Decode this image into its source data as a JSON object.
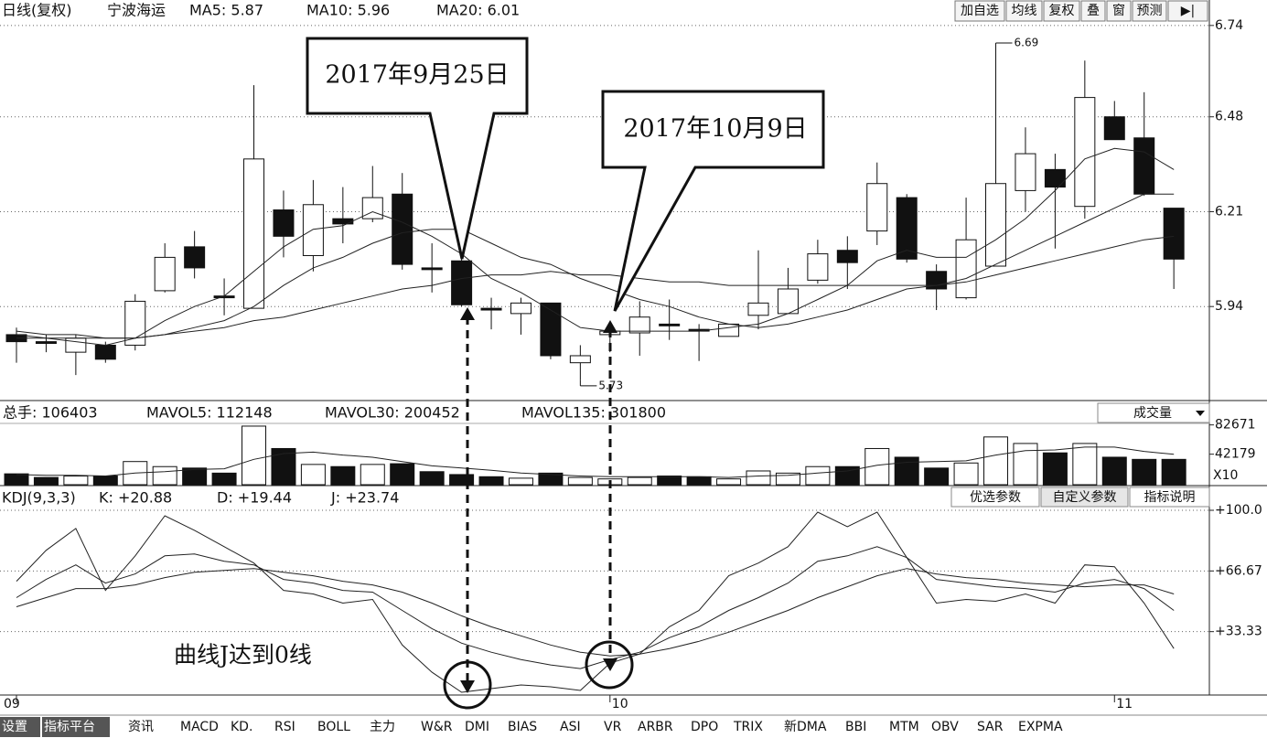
{
  "header": {
    "items": [
      "日线(复权)",
      "宁波海运",
      "MA5: 5.87",
      "MA10: 5.96",
      "MA20: 6.01"
    ],
    "buttons": [
      "加自选",
      "均线",
      "复权",
      "叠",
      "窗",
      "预测",
      "▶|"
    ]
  },
  "chart_data": [
    {
      "type": "candlestick",
      "categories": [
        "09",
        null,
        null,
        null,
        null,
        null,
        null,
        null,
        null,
        null,
        null,
        null,
        null,
        null,
        null,
        null,
        null,
        null,
        null,
        null,
        "10",
        null,
        null,
        null,
        null,
        null,
        null,
        null,
        null,
        null,
        null,
        null,
        null,
        null,
        null,
        null,
        null,
        "11",
        null,
        null
      ],
      "open": [
        5.86,
        5.84,
        5.81,
        5.83,
        5.83,
        5.985,
        6.11,
        5.97,
        5.935,
        6.215,
        6.085,
        6.19,
        6.19,
        6.26,
        6.05,
        6.07,
        5.935,
        5.92,
        5.95,
        5.78,
        5.86,
        5.865,
        5.89,
        5.875,
        5.855,
        5.915,
        5.92,
        6.015,
        6.1,
        6.155,
        6.25,
        6.04,
        5.965,
        6.055,
        6.27,
        6.33,
        6.225,
        6.48,
        6.42,
        6.22
      ],
      "high": [
        5.88,
        5.86,
        5.86,
        5.84,
        5.975,
        6.12,
        6.155,
        6.02,
        6.57,
        6.27,
        6.3,
        6.28,
        6.34,
        6.32,
        6.12,
        6.09,
        5.965,
        5.965,
        5.95,
        5.83,
        5.89,
        5.955,
        5.96,
        5.89,
        5.89,
        6.1,
        6.05,
        6.13,
        6.14,
        6.35,
        6.26,
        6.06,
        6.25,
        6.69,
        6.45,
        6.375,
        6.64,
        6.525,
        6.55,
        6.22
      ],
      "low": [
        5.78,
        5.81,
        5.745,
        5.78,
        5.815,
        5.98,
        6.02,
        5.915,
        5.935,
        6.08,
        6.04,
        6.12,
        6.18,
        6.045,
        5.98,
        5.94,
        5.875,
        5.86,
        5.79,
        5.73,
        5.81,
        5.8,
        5.845,
        5.785,
        5.855,
        5.875,
        5.92,
        6.005,
        5.99,
        6.115,
        6.065,
        5.93,
        5.96,
        6.055,
        6.21,
        6.105,
        6.19,
        6.415,
        6.255,
        5.99
      ],
      "close": [
        5.84,
        5.835,
        5.85,
        5.79,
        5.955,
        6.08,
        6.05,
        5.965,
        6.36,
        6.14,
        6.23,
        6.175,
        6.25,
        6.06,
        6.045,
        5.945,
        5.93,
        5.95,
        5.8,
        5.8,
        5.87,
        5.91,
        5.885,
        5.87,
        5.89,
        5.95,
        5.99,
        6.09,
        6.065,
        6.29,
        6.075,
        5.99,
        6.13,
        6.29,
        6.375,
        6.28,
        6.535,
        6.415,
        6.26,
        6.075
      ],
      "series": [
        {
          "color": "#222",
          "values": [
            5.86,
            5.85,
            5.84,
            5.83,
            5.85,
            5.9,
            5.94,
            5.97,
            6.04,
            6.11,
            6.16,
            6.17,
            6.21,
            6.18,
            6.14,
            6.09,
            6.02,
            5.98,
            5.93,
            5.88,
            5.87,
            5.87,
            5.87,
            5.87,
            5.88,
            5.89,
            5.92,
            5.96,
            6.0,
            6.07,
            6.1,
            6.08,
            6.08,
            6.13,
            6.19,
            6.27,
            6.36,
            6.39,
            6.38,
            6.33
          ]
        },
        {
          "color": "#222",
          "values": [
            5.87,
            5.86,
            5.86,
            5.85,
            5.85,
            5.86,
            5.88,
            5.9,
            5.94,
            6.0,
            6.05,
            6.08,
            6.12,
            6.15,
            6.16,
            6.16,
            6.12,
            6.08,
            6.06,
            6.02,
            5.99,
            5.96,
            5.94,
            5.91,
            5.89,
            5.88,
            5.89,
            5.91,
            5.93,
            5.96,
            5.99,
            6.0,
            6.02,
            6.06,
            6.1,
            6.14,
            6.18,
            6.22,
            6.26,
            6.26
          ]
        },
        {
          "color": "#222",
          "values": [
            5.85,
            5.85,
            5.85,
            5.85,
            5.85,
            5.86,
            5.87,
            5.88,
            5.9,
            5.91,
            5.93,
            5.95,
            5.97,
            5.99,
            6.0,
            6.02,
            6.03,
            6.03,
            6.04,
            6.03,
            6.03,
            6.02,
            6.01,
            6.01,
            6.0,
            6.0,
            6.0,
            6.0,
            6.0,
            6.0,
            6.0,
            6.0,
            6.01,
            6.03,
            6.05,
            6.07,
            6.09,
            6.11,
            6.13,
            6.14
          ]
        }
      ],
      "ylim": [
        5.675,
        6.75
      ],
      "yticks": [
        5.94,
        6.21,
        6.48,
        6.74
      ],
      "grid": true
    },
    {
      "type": "bar",
      "stats": [
        "总手: 106403",
        "MAVOL5: 112148",
        "MAVOL30: 200452",
        "MAVOL135: 301800"
      ],
      "selector": "成交量",
      "unit_label": "X10",
      "values": [
        15000,
        10000,
        12000,
        12000,
        32000,
        25000,
        23000,
        16000,
        81000,
        50000,
        28000,
        25000,
        28000,
        29000,
        18000,
        14000,
        11000,
        9000,
        16000,
        10000,
        8000,
        10000,
        12000,
        11000,
        8000,
        19000,
        16000,
        25000,
        25000,
        50000,
        38000,
        23000,
        30000,
        66000,
        57000,
        44000,
        57000,
        38000,
        35000,
        35000
      ],
      "series": [
        {
          "color": "#222",
          "values": [
            14000,
            13000,
            13000,
            12000,
            16000,
            18000,
            21000,
            22000,
            35000,
            43000,
            45000,
            41000,
            38000,
            32000,
            26000,
            23000,
            20000,
            16000,
            14000,
            12000,
            11000,
            11000,
            11000,
            11000,
            10000,
            12000,
            13000,
            16000,
            19000,
            27000,
            31000,
            32000,
            33000,
            41000,
            47000,
            48000,
            52000,
            52000,
            46000,
            42000
          ]
        }
      ],
      "ylim": [
        0,
        86000
      ],
      "yticks": [
        42179,
        82671
      ]
    },
    {
      "type": "line",
      "stats": [
        "KDJ(9,3,3)",
        "K: +20.88",
        "D: +19.44",
        "J: +23.74"
      ],
      "buttons": [
        "优选参数",
        "自定义参数",
        "指标说明"
      ],
      "series": [
        {
          "color": "#222",
          "values": [
            52,
            62,
            70,
            60,
            65,
            75,
            76,
            72,
            70,
            62,
            60,
            56,
            55,
            45,
            35,
            27,
            22,
            18,
            15,
            13,
            18,
            22,
            30,
            36,
            45,
            52,
            60,
            72,
            75,
            80,
            74,
            62,
            60,
            58,
            57,
            55,
            60,
            62,
            57,
            45
          ]
        },
        {
          "color": "#222",
          "values": [
            47,
            52,
            57,
            57,
            59,
            63,
            66,
            67,
            68,
            66,
            64,
            61,
            59,
            55,
            49,
            42,
            36,
            31,
            26,
            22,
            20,
            21,
            24,
            28,
            33,
            39,
            45,
            52,
            58,
            64,
            68,
            65,
            63,
            62,
            60,
            59,
            58,
            59,
            59,
            54
          ]
        },
        {
          "color": "#222",
          "values": [
            61,
            78,
            90,
            56,
            75,
            97,
            89,
            80,
            71,
            56,
            54,
            49,
            51,
            26,
            11,
            0,
            2,
            4,
            3,
            1,
            16,
            21,
            36,
            45,
            64,
            71,
            80,
            99,
            91,
            99,
            74,
            49,
            51,
            50,
            54,
            49,
            70,
            69,
            49,
            24
          ]
        }
      ],
      "ylim": [
        0,
        100
      ],
      "yticks": [
        {
          "value": 100,
          "label": "+100.0"
        },
        {
          "value": 66.67,
          "label": "+66.67"
        },
        {
          "value": 33.33,
          "label": "+33.33"
        }
      ],
      "grid": true
    }
  ],
  "annotations": {
    "callouts": [
      "2017年9月25日",
      "2017年10月9日"
    ],
    "note": "曲线J达到0线"
  },
  "toolbar": [
    "设置",
    "指标平台",
    "资讯",
    "MACD",
    "KD.",
    "RSI",
    "BOLL",
    "主力",
    "W&R",
    "DMI",
    "BIAS",
    "ASI",
    "VR",
    "ARBR",
    "DPO",
    "TRIX",
    "新DMA",
    "BBI",
    "MTM",
    "OBV",
    "SAR",
    "EXPMA"
  ]
}
